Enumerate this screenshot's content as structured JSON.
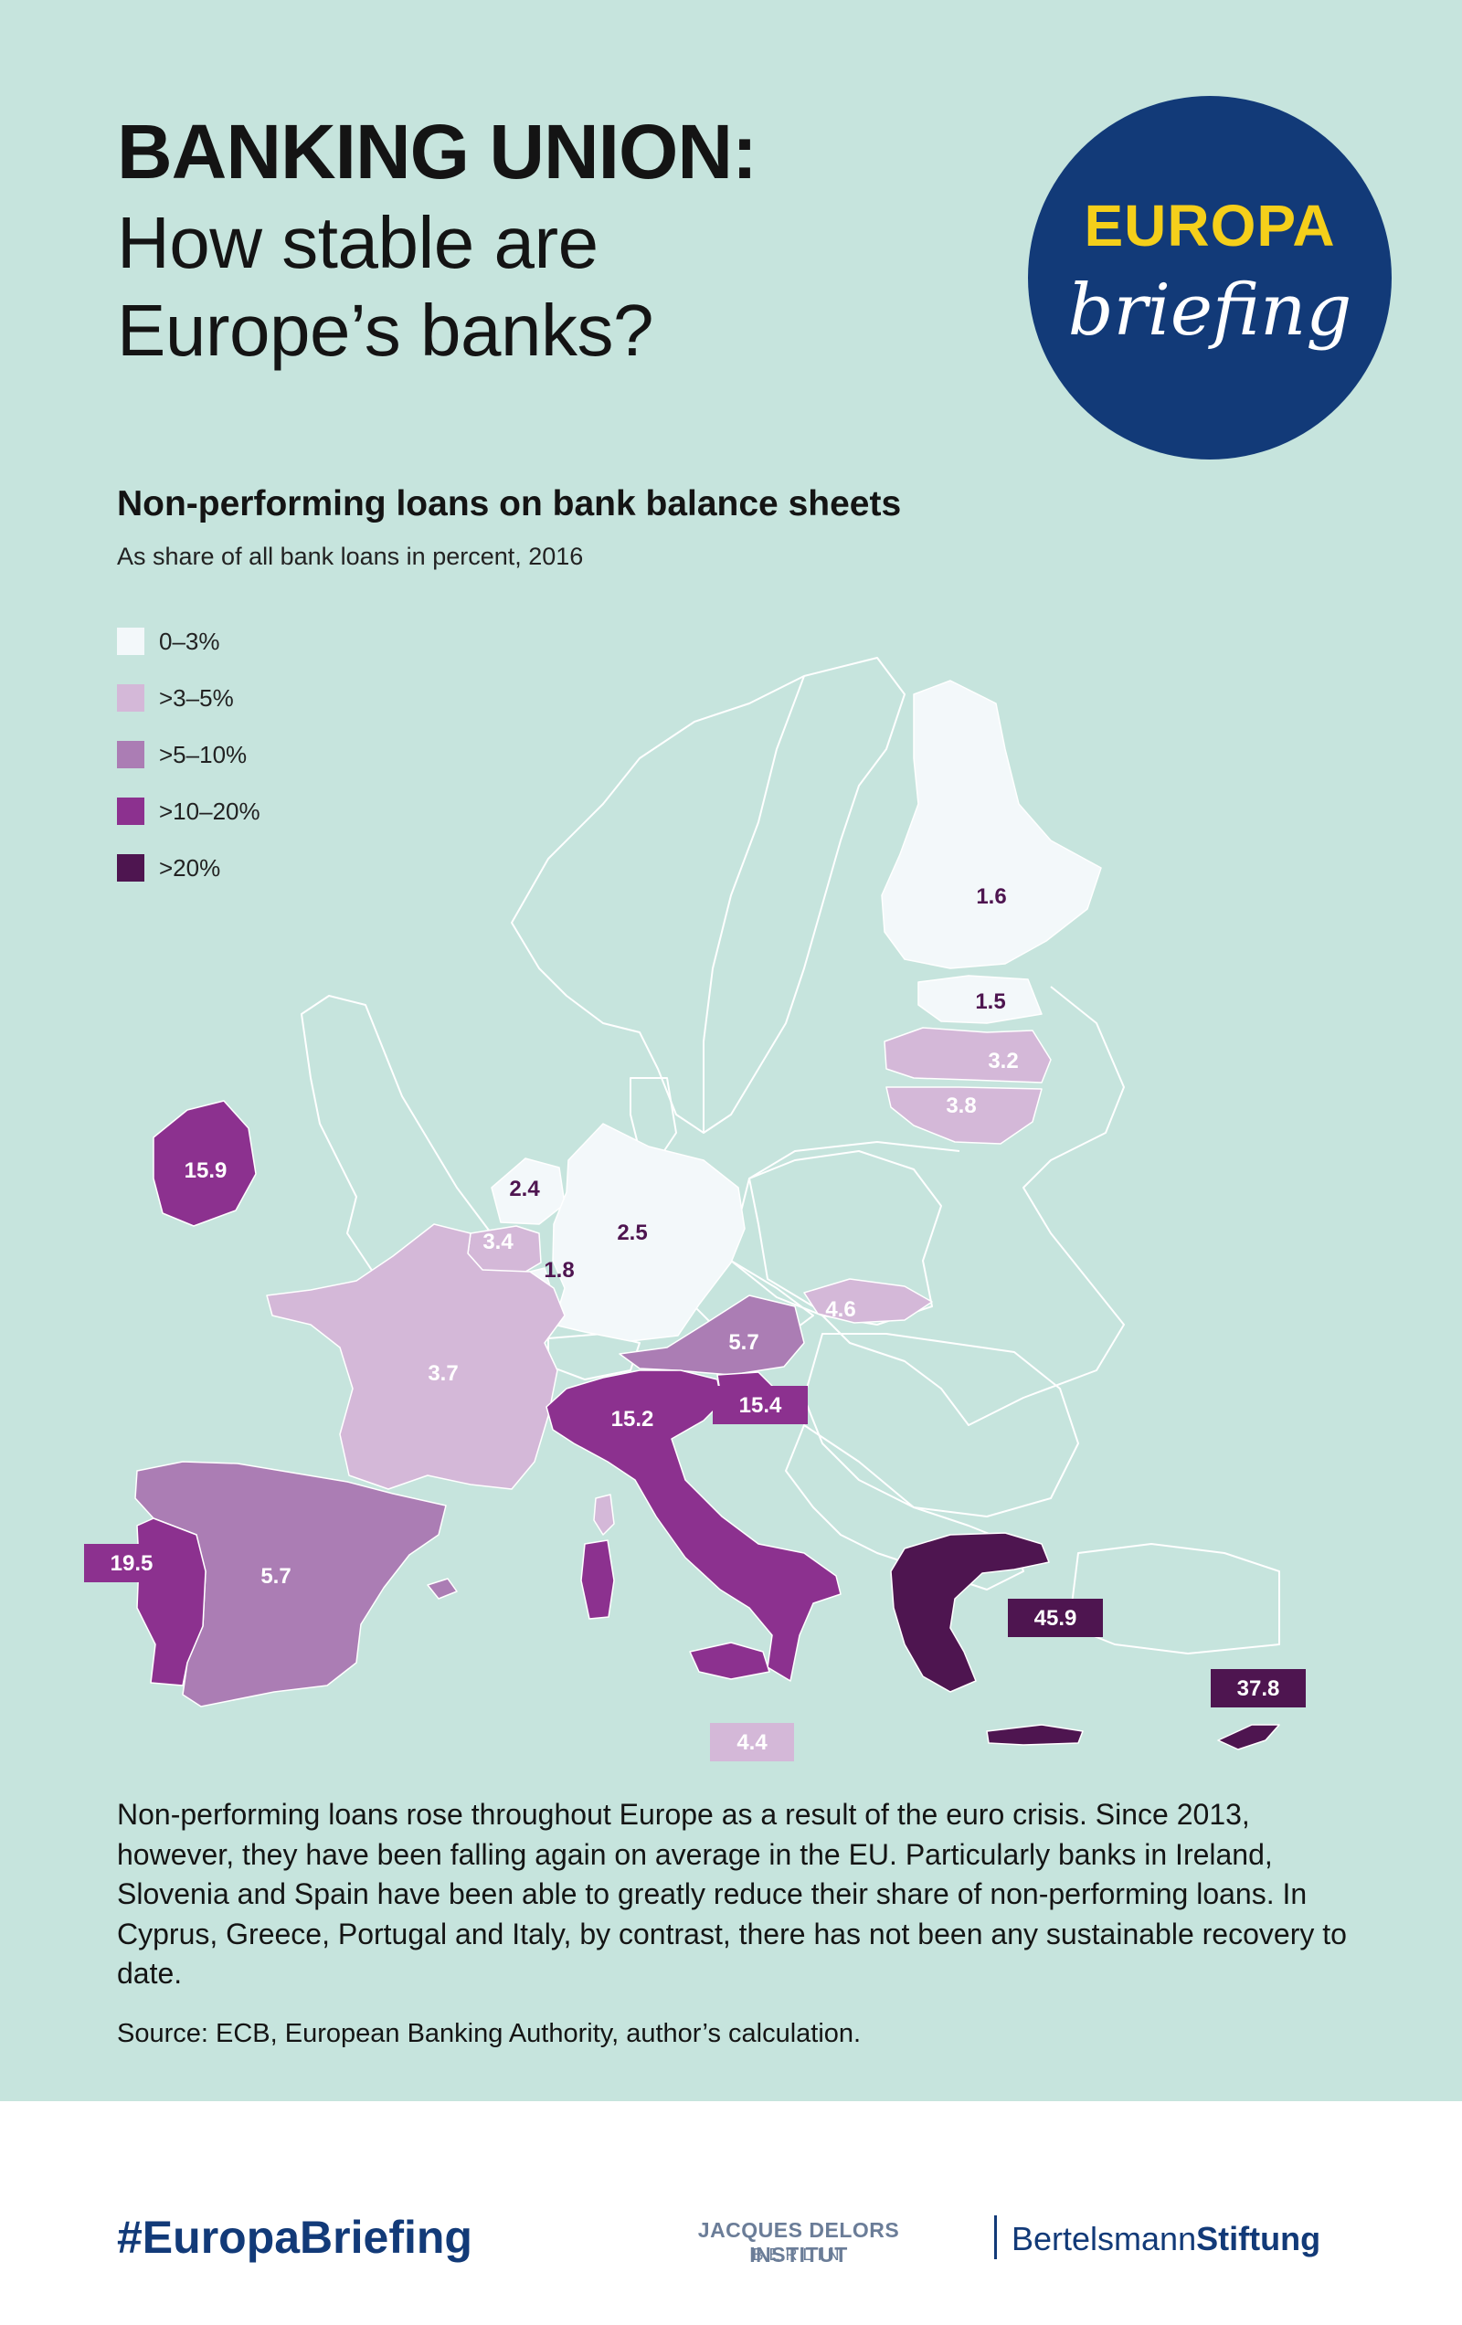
{
  "header": {
    "title_bold": "BANKING UNION:",
    "title_line2": "How stable are",
    "title_line3": "Europe’s banks?"
  },
  "badge": {
    "top": "EUROPA",
    "bottom": "briefing"
  },
  "map": {
    "title": "Non-performing loans on bank balance sheets",
    "subtitle": "As share of all bank loans in percent, 2016",
    "legend": [
      {
        "label": "0–3%",
        "color": "#f3f8fa"
      },
      {
        "label": ">3–5%",
        "color": "#d4b8d8"
      },
      {
        "label": ">5–10%",
        "color": "#ab7db4"
      },
      {
        "label": ">10–20%",
        "color": "#8c318f"
      },
      {
        "label": ">20%",
        "color": "#4e1550"
      }
    ],
    "values": {
      "finland": "1.6",
      "estonia": "1.5",
      "latvia": "3.2",
      "lithuania": "3.8",
      "ireland": "15.9",
      "netherlands": "2.4",
      "belgium": "3.4",
      "luxembourg": "1.8",
      "germany": "2.5",
      "slovakia": "4.6",
      "austria": "5.7",
      "slovenia": "15.4",
      "france": "3.7",
      "italy": "15.2",
      "portugal": "19.5",
      "spain": "5.7",
      "malta": "4.4",
      "greece": "45.9",
      "cyprus": "37.8"
    }
  },
  "body_text": "Non-performing loans rose throughout Europe as a result of the euro crisis. Since 2013, however, they have been falling again on average in the EU. Particularly banks in Ireland, Slovenia and Spain have been able to greatly reduce their share of non-performing loans. In Cyprus, Greece, Portugal and Italy, by contrast, there has not been any sustainable recovery to date.",
  "source": "Source: ECB, European Banking Authority, author’s calculation.",
  "footer": {
    "hashtag": "#EuropaBriefing",
    "jdi_line1": "JACQUES DELORS INSTITUT",
    "jdi_line2": "BERLIN",
    "bs_regular": "Bertelsmann",
    "bs_bold": "Stiftung"
  }
}
